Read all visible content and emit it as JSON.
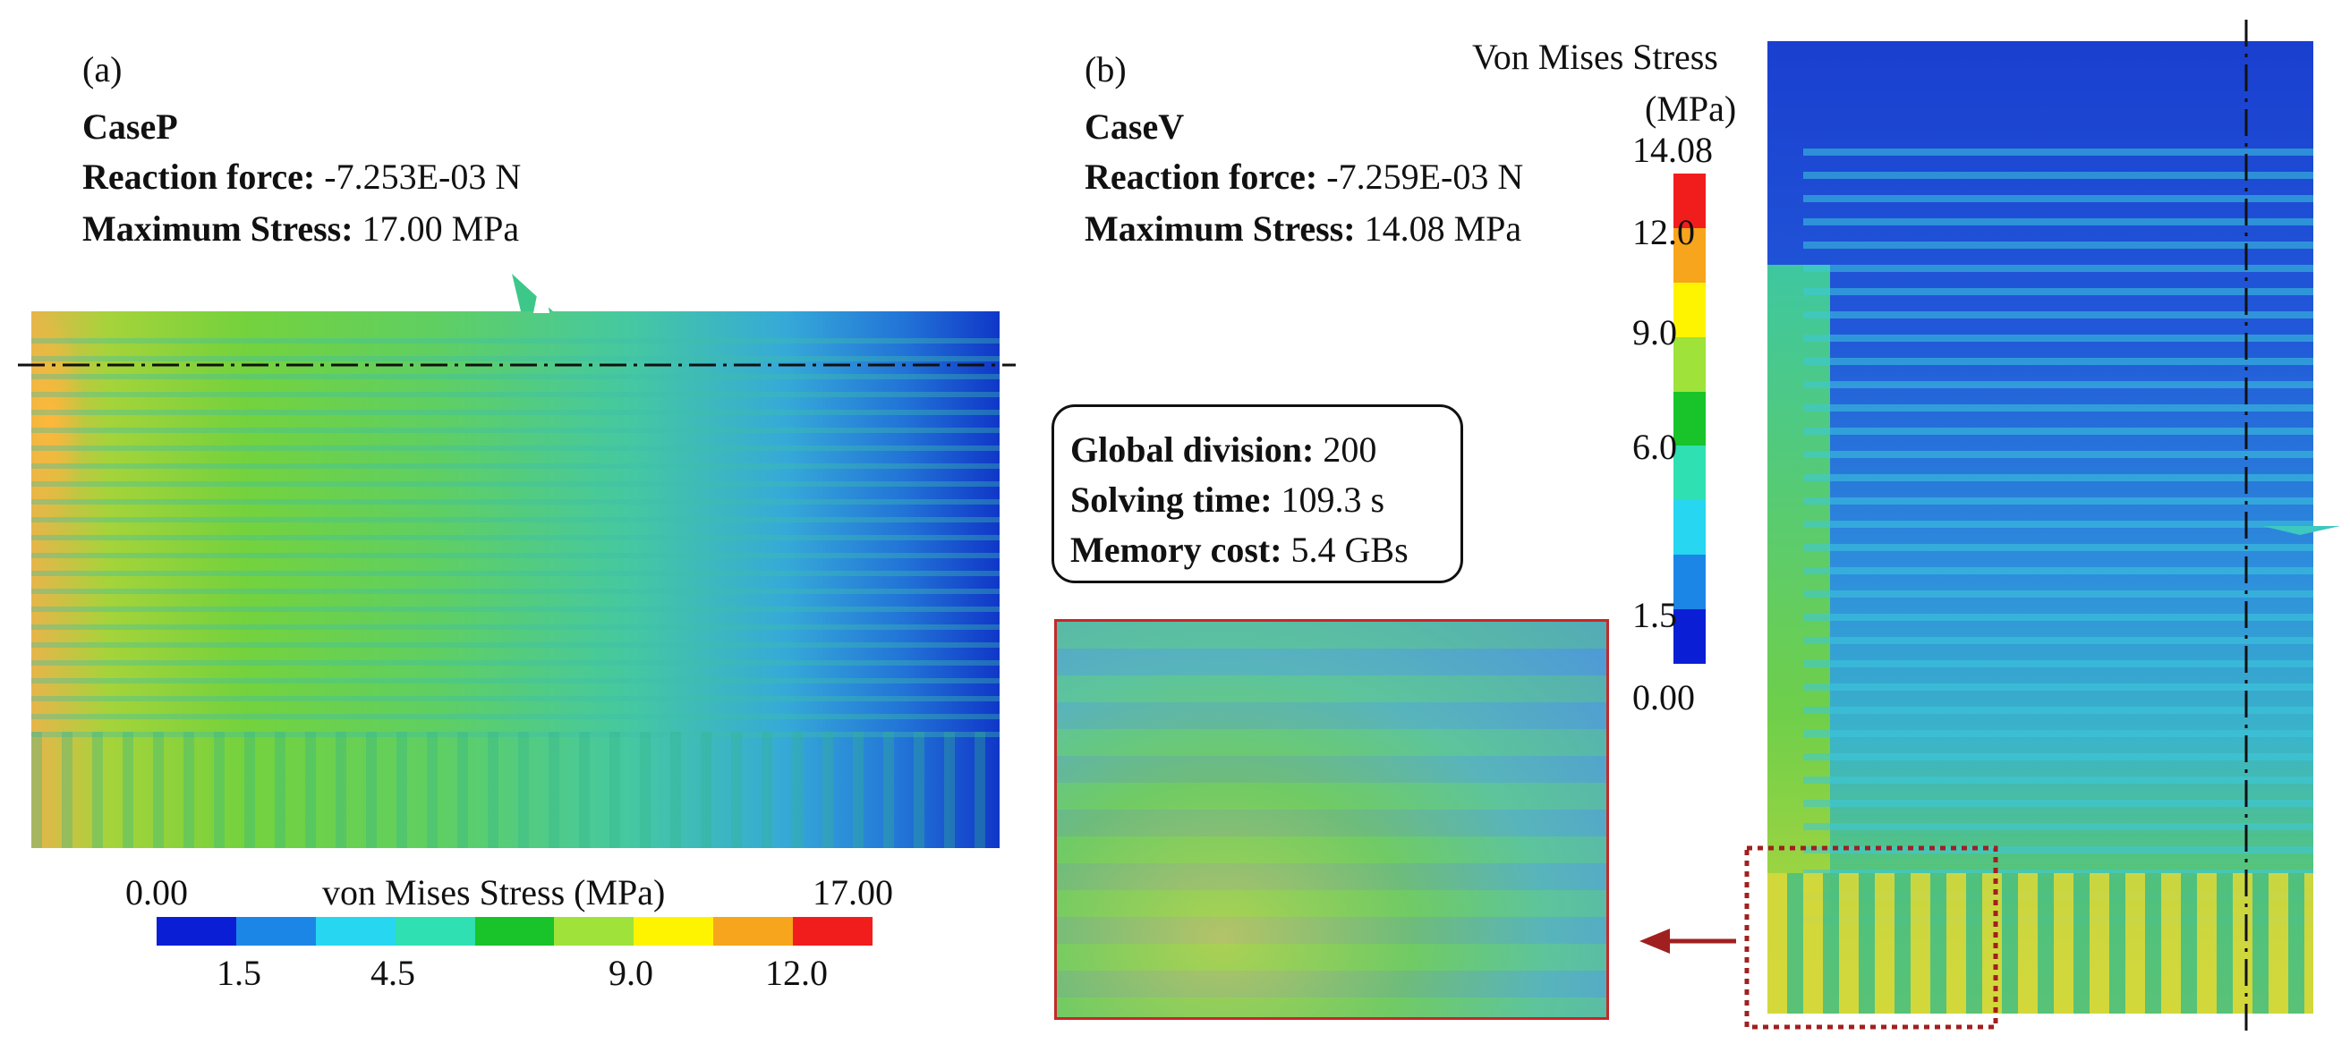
{
  "panel_a": {
    "letter": "(a)",
    "case": "CaseP",
    "reaction_label": "Reaction force:",
    "reaction_value": "-7.253E-03 N",
    "max_label": "Maximum Stress:",
    "max_value": "17.00 MPa"
  },
  "panel_b": {
    "letter": "(b)",
    "case": "CaseV",
    "reaction_label": "Reaction force:",
    "reaction_value": "-7.259E-03 N",
    "max_label": "Maximum Stress:",
    "max_value": "14.08 MPa"
  },
  "info": {
    "division_label": "Global division:",
    "division_value": "200",
    "time_label": "Solving time:",
    "time_value": "109.3 s",
    "memory_label": "Memory cost:",
    "memory_value": "5.4 GBs"
  },
  "colorbar_a": {
    "title": "von Mises Stress (MPa)",
    "min": "0.00",
    "max": "17.00",
    "ticks": [
      "1.5",
      "4.5",
      "9.0",
      "12.0"
    ],
    "colors": [
      "#0a1ed6",
      "#1c86e6",
      "#27d6f0",
      "#2fe0b2",
      "#19c32a",
      "#9ee23a",
      "#fff400",
      "#f7a51c",
      "#f11d1d"
    ]
  },
  "colorbar_b": {
    "title_line1": "Von Mises Stress",
    "title_line2": "(MPa)",
    "max": "14.08",
    "min": "0.00",
    "ticks": [
      "12.0",
      "9.0",
      "6.0",
      "1.5"
    ],
    "colors": [
      "#f11d1d",
      "#f7a51c",
      "#fff400",
      "#9ee23a",
      "#19c32a",
      "#2fe0b2",
      "#27d6f0",
      "#1c86e6",
      "#0a1ed6"
    ]
  }
}
